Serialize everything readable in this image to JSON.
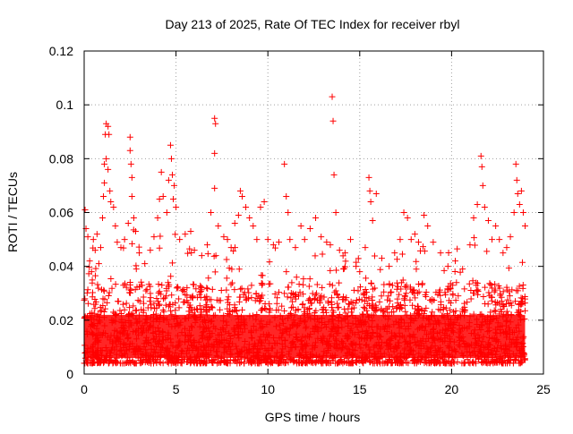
{
  "chart_data": {
    "type": "scatter",
    "title": "Day 213 of 2025, Rate Of TEC Index for receiver rbyl",
    "xlabel": "GPS time / hours",
    "ylabel": "ROTI / TECUs",
    "xlim": [
      0,
      25
    ],
    "ylim": [
      0,
      0.12
    ],
    "x_ticks": [
      0,
      5,
      10,
      15,
      20,
      25
    ],
    "x_tick_labels": [
      "0",
      "5",
      "10",
      "15",
      "20",
      "25"
    ],
    "y_ticks": [
      0,
      0.02,
      0.04,
      0.06,
      0.08,
      0.1,
      0.12
    ],
    "y_tick_labels": [
      "0",
      "0.02",
      "0.04",
      "0.06",
      "0.08",
      "0.1",
      "0.12"
    ],
    "grid": true,
    "marker": "plus",
    "color": "#ff0000",
    "series": [
      {
        "name": "ROTI",
        "points": [
          [
            0.05,
            0.061
          ],
          [
            0.1,
            0.054
          ],
          [
            0.2,
            0.051
          ],
          [
            0.3,
            0.042
          ],
          [
            0.4,
            0.038
          ],
          [
            0.5,
            0.05
          ],
          [
            0.6,
            0.046
          ],
          [
            0.7,
            0.052
          ],
          [
            0.8,
            0.041
          ],
          [
            0.9,
            0.047
          ],
          [
            1.0,
            0.058
          ],
          [
            1.05,
            0.066
          ],
          [
            1.1,
            0.071
          ],
          [
            1.15,
            0.089
          ],
          [
            1.2,
            0.093
          ],
          [
            1.3,
            0.092
          ],
          [
            1.35,
            0.089
          ],
          [
            1.4,
            0.068
          ],
          [
            1.45,
            0.064
          ],
          [
            1.1,
            0.078
          ],
          [
            1.2,
            0.08
          ],
          [
            1.3,
            0.076
          ],
          [
            1.6,
            0.062
          ],
          [
            1.7,
            0.055
          ],
          [
            1.8,
            0.049
          ],
          [
            2.0,
            0.047
          ],
          [
            2.2,
            0.05
          ],
          [
            2.4,
            0.056
          ],
          [
            2.5,
            0.088
          ],
          [
            2.5,
            0.083
          ],
          [
            2.55,
            0.078
          ],
          [
            2.6,
            0.073
          ],
          [
            2.6,
            0.066
          ],
          [
            2.7,
            0.058
          ],
          [
            2.8,
            0.053
          ],
          [
            3.0,
            0.045
          ],
          [
            3.3,
            0.041
          ],
          [
            3.6,
            0.046
          ],
          [
            3.8,
            0.051
          ],
          [
            4.0,
            0.058
          ],
          [
            4.1,
            0.065
          ],
          [
            4.2,
            0.075
          ],
          [
            4.3,
            0.066
          ],
          [
            4.5,
            0.06
          ],
          [
            4.6,
            0.072
          ],
          [
            4.7,
            0.085
          ],
          [
            4.75,
            0.08
          ],
          [
            4.8,
            0.074
          ],
          [
            4.85,
            0.065
          ],
          [
            4.9,
            0.07
          ],
          [
            5.0,
            0.062
          ],
          [
            5.2,
            0.05
          ],
          [
            5.5,
            0.052
          ],
          [
            5.8,
            0.053
          ],
          [
            6.0,
            0.046
          ],
          [
            6.4,
            0.044
          ],
          [
            6.7,
            0.048
          ],
          [
            6.9,
            0.06
          ],
          [
            7.1,
            0.095
          ],
          [
            7.15,
            0.093
          ],
          [
            7.1,
            0.082
          ],
          [
            7.1,
            0.069
          ],
          [
            7.3,
            0.055
          ],
          [
            7.6,
            0.051
          ],
          [
            7.8,
            0.05
          ],
          [
            8.0,
            0.047
          ],
          [
            8.2,
            0.056
          ],
          [
            8.4,
            0.059
          ],
          [
            8.5,
            0.068
          ],
          [
            8.6,
            0.066
          ],
          [
            8.8,
            0.062
          ],
          [
            9.0,
            0.058
          ],
          [
            9.2,
            0.055
          ],
          [
            9.4,
            0.05
          ],
          [
            9.6,
            0.062
          ],
          [
            9.8,
            0.064
          ],
          [
            10.0,
            0.05
          ],
          [
            10.3,
            0.048
          ],
          [
            10.6,
            0.049
          ],
          [
            10.9,
            0.078
          ],
          [
            11.0,
            0.066
          ],
          [
            11.1,
            0.06
          ],
          [
            11.2,
            0.05
          ],
          [
            11.5,
            0.047
          ],
          [
            11.8,
            0.055
          ],
          [
            12.0,
            0.05
          ],
          [
            12.3,
            0.054
          ],
          [
            12.6,
            0.058
          ],
          [
            12.9,
            0.051
          ],
          [
            13.2,
            0.049
          ],
          [
            13.4,
            0.048
          ],
          [
            13.5,
            0.103
          ],
          [
            13.55,
            0.094
          ],
          [
            13.6,
            0.074
          ],
          [
            13.7,
            0.06
          ],
          [
            13.9,
            0.046
          ],
          [
            14.2,
            0.045
          ],
          [
            14.5,
            0.05
          ],
          [
            14.8,
            0.04
          ],
          [
            15.0,
            0.038
          ],
          [
            15.3,
            0.047
          ],
          [
            15.5,
            0.073
          ],
          [
            15.55,
            0.068
          ],
          [
            15.6,
            0.064
          ],
          [
            15.7,
            0.057
          ],
          [
            15.9,
            0.067
          ],
          [
            16.2,
            0.043
          ],
          [
            16.6,
            0.04
          ],
          [
            16.9,
            0.045
          ],
          [
            17.2,
            0.05
          ],
          [
            17.4,
            0.06
          ],
          [
            17.6,
            0.058
          ],
          [
            17.8,
            0.05
          ],
          [
            18.0,
            0.052
          ],
          [
            18.2,
            0.049
          ],
          [
            18.5,
            0.059
          ],
          [
            18.7,
            0.055
          ],
          [
            19.0,
            0.049
          ],
          [
            19.4,
            0.045
          ],
          [
            19.8,
            0.04
          ],
          [
            20.2,
            0.042
          ],
          [
            20.6,
            0.039
          ],
          [
            21.0,
            0.048
          ],
          [
            21.2,
            0.058
          ],
          [
            21.4,
            0.063
          ],
          [
            21.6,
            0.081
          ],
          [
            21.65,
            0.077
          ],
          [
            21.7,
            0.07
          ],
          [
            21.8,
            0.062
          ],
          [
            22.0,
            0.057
          ],
          [
            22.2,
            0.05
          ],
          [
            22.4,
            0.055
          ],
          [
            22.6,
            0.05
          ],
          [
            22.8,
            0.045
          ],
          [
            23.0,
            0.047
          ],
          [
            23.2,
            0.051
          ],
          [
            23.4,
            0.06
          ],
          [
            23.5,
            0.078
          ],
          [
            23.55,
            0.072
          ],
          [
            23.6,
            0.067
          ],
          [
            23.7,
            0.063
          ],
          [
            23.8,
            0.068
          ],
          [
            23.9,
            0.06
          ],
          [
            24.0,
            0.055
          ]
        ]
      }
    ]
  }
}
